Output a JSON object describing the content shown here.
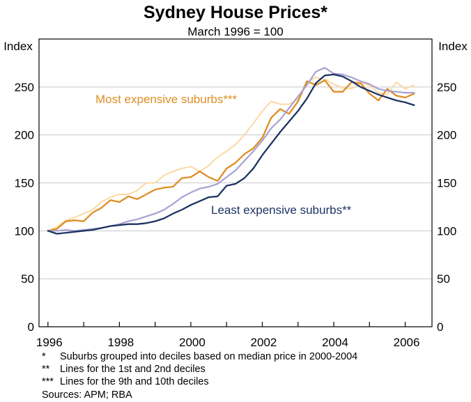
{
  "chart_data": {
    "type": "line",
    "title": "Sydney House Prices*",
    "subtitle": "March 1996 = 100",
    "ylabel_left": "Index",
    "ylabel_right": "Index",
    "ylim": [
      0,
      300
    ],
    "yticks": [
      0,
      50,
      100,
      150,
      200,
      250
    ],
    "xlim": [
      1995.75,
      2006.75
    ],
    "xticks": [
      1996,
      1998,
      2000,
      2002,
      2004,
      2006
    ],
    "grid": true,
    "colors": {
      "top_decile": "#fbd9a3",
      "ninth_decile": "#de8d24",
      "second_decile": "#a8a0d4",
      "bottom_decile": "#1d3463",
      "axis": "#000000",
      "grid": "#c8c8c8"
    },
    "annotations": [
      {
        "text": "Most expensive suburbs***",
        "series": "ninth_decile"
      },
      {
        "text": "Least expensive suburbs**",
        "series": "bottom_decile"
      }
    ],
    "x": [
      1996.0,
      1996.25,
      1996.5,
      1996.75,
      1997.0,
      1997.25,
      1997.5,
      1997.75,
      1998.0,
      1998.25,
      1998.5,
      1998.75,
      1999.0,
      1999.25,
      1999.5,
      1999.75,
      2000.0,
      2000.25,
      2000.5,
      2000.75,
      2001.0,
      2001.25,
      2001.5,
      2001.75,
      2002.0,
      2002.25,
      2002.5,
      2002.75,
      2003.0,
      2003.25,
      2003.5,
      2003.75,
      2004.0,
      2004.25,
      2004.5,
      2004.75,
      2005.0,
      2005.25,
      2005.5,
      2005.75,
      2006.0,
      2006.25
    ],
    "series": [
      {
        "name": "Most expensive suburbs (10th decile)",
        "key": "top_decile",
        "width": 2,
        "values": [
          100,
          104,
          111,
          114,
          118,
          122,
          130,
          135,
          138,
          138,
          142,
          150,
          150,
          158,
          162,
          165,
          167,
          162,
          168,
          177,
          183,
          190,
          200,
          212,
          225,
          235,
          232,
          232,
          237,
          255,
          260,
          258,
          253,
          249,
          248,
          254,
          252,
          244,
          242,
          255,
          248,
          252
        ]
      },
      {
        "name": "Most expensive suburbs (9th decile)",
        "key": "ninth_decile",
        "width": 2.3,
        "values": [
          100,
          102,
          110,
          111,
          110,
          119,
          124,
          132,
          130,
          136,
          133,
          138,
          143,
          145,
          146,
          155,
          156,
          162,
          156,
          152,
          165,
          171,
          180,
          186,
          197,
          218,
          227,
          222,
          235,
          256,
          252,
          257,
          245,
          245,
          255,
          254,
          243,
          236,
          248,
          241,
          239,
          243
        ]
      },
      {
        "name": "Least expensive suburbs (2nd decile)",
        "key": "second_decile",
        "width": 2.2,
        "values": [
          100,
          100,
          101,
          100,
          101,
          102,
          103,
          105,
          107,
          110,
          112,
          115,
          118,
          122,
          128,
          135,
          140,
          144,
          146,
          149,
          156,
          163,
          173,
          183,
          194,
          207,
          216,
          228,
          240,
          252,
          266,
          270,
          264,
          263,
          260,
          256,
          253,
          248,
          246,
          245,
          244,
          244
        ]
      },
      {
        "name": "Least expensive suburbs (bottom decile)",
        "key": "bottom_decile",
        "width": 2.3,
        "values": [
          100,
          97,
          98,
          99,
          100,
          101,
          103,
          105,
          106,
          107,
          107,
          108,
          110,
          113,
          118,
          122,
          127,
          131,
          135,
          136,
          147,
          149,
          155,
          165,
          179,
          191,
          203,
          214,
          225,
          238,
          254,
          262,
          263,
          261,
          256,
          250,
          246,
          242,
          239,
          236,
          234,
          231
        ]
      }
    ]
  },
  "footnotes": [
    {
      "mark": "*",
      "text": "Suburbs grouped into deciles based on median price in 2000-2004"
    },
    {
      "mark": "**",
      "text": "Lines for the 1st and 2nd deciles"
    },
    {
      "mark": "***",
      "text": "Lines for the 9th and 10th deciles"
    }
  ],
  "sources": "Sources: APM; RBA"
}
